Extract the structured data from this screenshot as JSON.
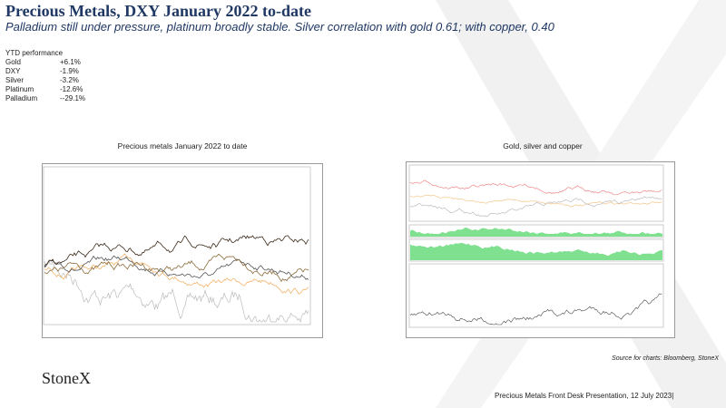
{
  "header": {
    "title": "Precious Metals, DXY January 2022 to-date",
    "subtitle": "Palladium still under pressure, platinum broadly stable.  Silver correlation with gold 0.61; with copper, 0.40"
  },
  "ytd": {
    "heading": "YTD performance",
    "rows": [
      [
        "Gold",
        "+6.1%"
      ],
      [
        "DXY",
        "-1.9%"
      ],
      [
        "Silver",
        "-3.2%"
      ],
      [
        "Platinum",
        "-12.6%"
      ],
      [
        "Palladium",
        "--29.1%"
      ]
    ]
  },
  "charts": [
    {
      "title": "Precious metals January 2022 to date"
    },
    {
      "title": "Gold, silver and copper"
    }
  ],
  "source": "Source for charts: Bloomberg, StoneX",
  "logo": "StoneX",
  "footer": "Precious Metals Front Desk Presentation, 12 July 2023|"
}
